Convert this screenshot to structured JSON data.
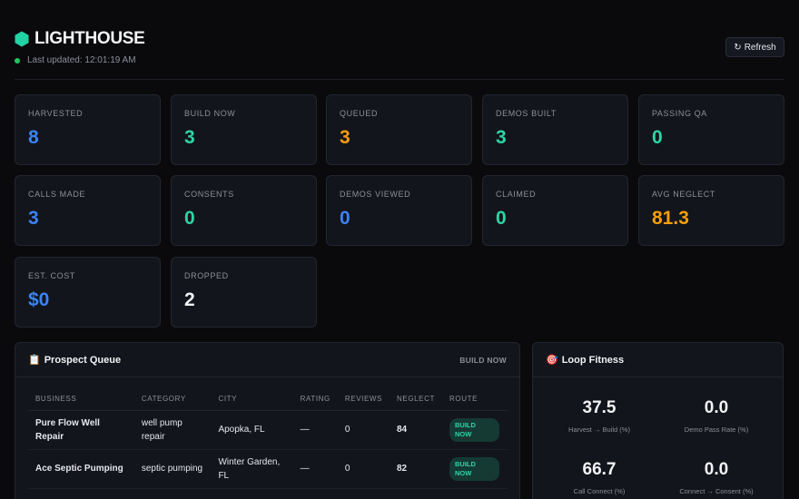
{
  "header": {
    "title": "LIGHTHOUSE",
    "brand_icon": "hexagon-icon",
    "brand_color": "#22d3a5",
    "last_updated_label": "Last updated:",
    "last_updated_time": "12:01:19 AM",
    "refresh_label": "Refresh",
    "refresh_icon": "↻"
  },
  "cards": [
    {
      "label": "HARVESTED",
      "value": "8",
      "color": "#3b82f6"
    },
    {
      "label": "BUILD NOW",
      "value": "3",
      "color": "#2dd4a7"
    },
    {
      "label": "QUEUED",
      "value": "3",
      "color": "#f59e0b"
    },
    {
      "label": "DEMOS BUILT",
      "value": "3",
      "color": "#2dd4a7"
    },
    {
      "label": "PASSING QA",
      "value": "0",
      "color": "#2dd4a7"
    },
    {
      "label": "CALLS MADE",
      "value": "3",
      "color": "#3b82f6"
    },
    {
      "label": "CONSENTS",
      "value": "0",
      "color": "#2dd4a7"
    },
    {
      "label": "DEMOS VIEWED",
      "value": "0",
      "color": "#3b82f6"
    },
    {
      "label": "CLAIMED",
      "value": "0",
      "color": "#2dd4a7"
    },
    {
      "label": "AVG NEGLECT",
      "value": "81.3",
      "color": "#f59e0b"
    },
    {
      "label": "EST. COST",
      "value": "$0",
      "color": "#3b82f6"
    },
    {
      "label": "DROPPED",
      "value": "2",
      "color": "#f2f3f5"
    }
  ],
  "queue": {
    "icon": "📋",
    "title": "Prospect Queue",
    "tag": "BUILD NOW",
    "columns": [
      "BUSINESS",
      "CATEGORY",
      "CITY",
      "RATING",
      "REVIEWS",
      "NEGLECT",
      "ROUTE"
    ],
    "rows": [
      {
        "business": "Pure Flow Well Repair",
        "category": "well pump repair",
        "city": "Apopka, FL",
        "rating": "—",
        "reviews": "0",
        "neglect": "84",
        "route": "BUILD NOW"
      },
      {
        "business": "Ace Septic Pumping",
        "category": "septic pumping",
        "city": "Winter Garden, FL",
        "rating": "—",
        "reviews": "0",
        "neglect": "82",
        "route": "BUILD NOW"
      }
    ]
  },
  "fitness": {
    "icon": "🎯",
    "title": "Loop Fitness",
    "metrics": [
      {
        "value": "37.5",
        "label": "Harvest → Build (%)"
      },
      {
        "value": "0.0",
        "label": "Demo Pass Rate (%)"
      },
      {
        "value": "66.7",
        "label": "Call Connect (%)"
      },
      {
        "value": "0.0",
        "label": "Connect → Consent (%)"
      }
    ]
  }
}
